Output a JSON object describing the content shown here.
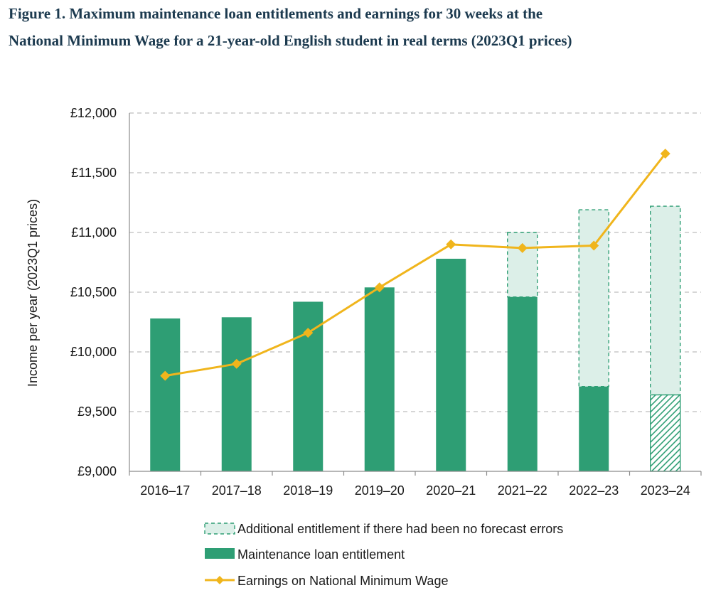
{
  "header": {
    "title_line1": "Figure 1. Maximum maintenance loan entitlements and earnings for 30 weeks at the",
    "title_line2": "National Minimum Wage for a 21-year-old English student in real terms (2023Q1 prices)"
  },
  "colors": {
    "loan": "#2e9e74",
    "additional_fill": "#dcefe8",
    "additional_border": "#2e9e74",
    "earnings": "#f0b51c",
    "grid": "#bdbdbd"
  },
  "chart_data": {
    "type": "bar",
    "title": "Figure 1. Maximum maintenance loan entitlements and earnings for 30 weeks at the National Minimum Wage for a 21-year-old English student in real terms (2023Q1 prices)",
    "xlabel": "",
    "ylabel": "Income per year (2023Q1 prices)",
    "ylim": [
      9000,
      12000
    ],
    "yticks": [
      9000,
      9500,
      10000,
      10500,
      11000,
      11500,
      12000
    ],
    "ytick_labels": [
      "£9,000",
      "£9,500",
      "£10,000",
      "£10,500",
      "£11,000",
      "£11,500",
      "£12,000"
    ],
    "grid": "horizontal dashed",
    "legend_position": "bottom",
    "categories": [
      "2016–17",
      "2017–18",
      "2018–19",
      "2019–20",
      "2020–21",
      "2021–22",
      "2022–23",
      "2023–24"
    ],
    "series": [
      {
        "name": "Maintenance loan entitlement",
        "kind": "bar",
        "values": [
          10280,
          10290,
          10420,
          10540,
          10780,
          10460,
          9710,
          9640
        ],
        "hatched_last": true
      },
      {
        "name": "Additional entitlement if there had been no forecast errors",
        "kind": "stacked-bar-dashed",
        "values": [
          0,
          0,
          0,
          0,
          0,
          540,
          1480,
          1580
        ]
      },
      {
        "name": "Earnings on National Minimum Wage",
        "kind": "line",
        "values": [
          9800,
          9900,
          10160,
          10540,
          10900,
          10870,
          10890,
          11660
        ]
      }
    ]
  }
}
